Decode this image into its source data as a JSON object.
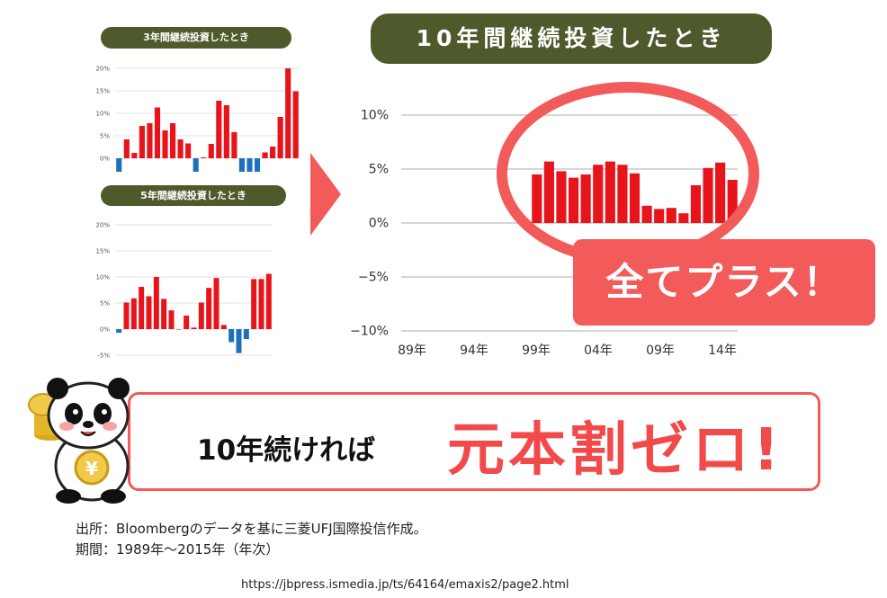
{
  "small3": {
    "title": "3年間継続投資したとき"
  },
  "small5": {
    "title": "5年間継続投資したとき"
  },
  "big": {
    "title": "10年間継続投資したとき"
  },
  "callout": "全てプラス！",
  "banner": {
    "lead": "10年続ければ",
    "main": "元本割ゼロ!"
  },
  "notes": {
    "source": "出所：Bloombergのデータを基に三菱UFJ国際投信作成。",
    "period": "期間：1989年～2015年（年次）"
  },
  "url": "https://jbpress.ismedia.jp/ts/64164/emaxis2/page2.html",
  "colors": {
    "positive": "#e8141c",
    "negative": "#1f6fbf",
    "pill": "#4e5a2b",
    "accent": "#f35a5a"
  },
  "icons": {
    "arrow": "chevron-right-icon",
    "mascot": "panda-mascot-icon",
    "coin": "yen-coin-icon"
  },
  "chart_data": [
    {
      "type": "bar",
      "title": "3年間継続投資したとき",
      "yticks": [
        "20%",
        "15%",
        "10%",
        "5%",
        "0%"
      ],
      "ylim": [
        -3,
        20
      ],
      "values": [
        -3,
        4.2,
        1.2,
        7.2,
        7.8,
        11.3,
        6.2,
        7.8,
        4.2,
        3.3,
        -3,
        0.2,
        3.2,
        12.8,
        11.8,
        5.8,
        -3,
        -3,
        -3,
        1.3,
        2.6,
        9.2,
        20,
        14.9
      ],
      "grid": true
    },
    {
      "type": "bar",
      "title": "5年間継続投資したとき",
      "yticks": [
        "20%",
        "15%",
        "10%",
        "5%",
        "0%",
        "-5%"
      ],
      "ylim": [
        -5,
        20
      ],
      "values": [
        -0.7,
        5.1,
        5.9,
        8.1,
        6.3,
        10,
        5.8,
        3.6,
        0,
        2.6,
        0.3,
        5.1,
        7.9,
        9.8,
        0.8,
        -2.5,
        -4.6,
        -1.9,
        9.6,
        9.6,
        10.6
      ],
      "grid": true
    },
    {
      "type": "bar",
      "title": "10年間継続投資したとき",
      "yticks": [
        "10%",
        "5%",
        "0%",
        "−5%",
        "−10%"
      ],
      "xticks": [
        "89年",
        "94年",
        "99年",
        "04年",
        "09年",
        "14年"
      ],
      "ylim": [
        -10,
        10
      ],
      "values": [
        4.5,
        5.7,
        4.8,
        4.2,
        4.5,
        5.4,
        5.7,
        5.4,
        4.6,
        1.6,
        1.3,
        1.4,
        0.9,
        3.5,
        5.1,
        5.6,
        4.0
      ],
      "grid": true
    }
  ]
}
